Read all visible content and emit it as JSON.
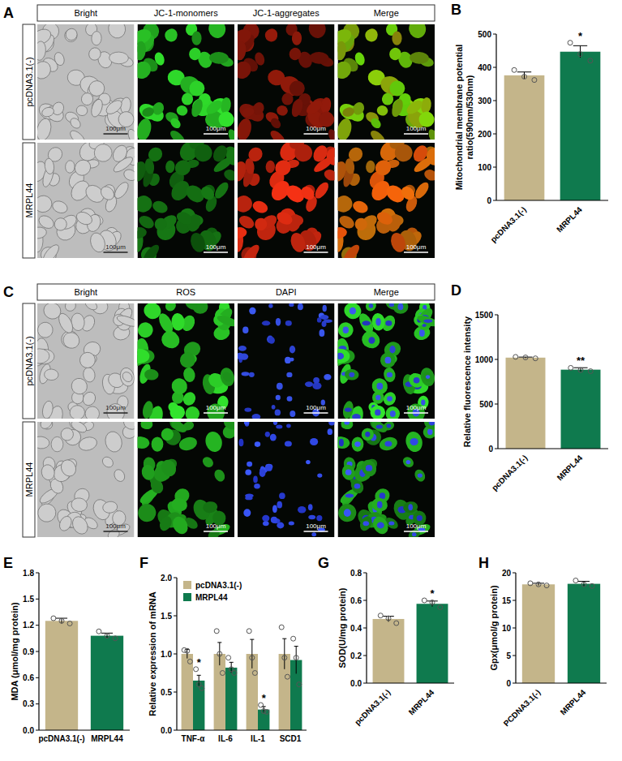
{
  "image_panels": [
    {
      "panel_label": "A",
      "columns": [
        "Bright",
        "JC-1-monomers",
        "JC-1-aggregates",
        "Merge"
      ],
      "rows": [
        "pcDNA3.1(-)",
        "MRPL44"
      ],
      "scale_bar": "100μm"
    },
    {
      "panel_label": "C",
      "columns": [
        "Bright",
        "ROS",
        "DAPI",
        "Merge"
      ],
      "rows": [
        "pcDNA3.1(-)",
        "MRPL44"
      ],
      "scale_bar": "100μm"
    }
  ],
  "chart_data": [
    {
      "panel_label": "B",
      "type": "bar",
      "y_label": "Mitochondrial membrane potential ratio(590nm/530nm)",
      "categories": [
        "pcDNA3.1(-)",
        "MRPL44"
      ],
      "values": [
        376,
        447
      ],
      "errors": [
        10,
        18
      ],
      "points": [
        [
          392,
          372,
          362
        ],
        [
          474,
          440,
          420
        ]
      ],
      "significance": [
        null,
        "*"
      ],
      "colors": [
        "#c4b58a",
        "#0f7a4e"
      ],
      "ylim": [
        0,
        500
      ],
      "yticks": [
        0,
        100,
        200,
        300,
        400,
        500
      ]
    },
    {
      "panel_label": "D",
      "type": "bar",
      "y_label": "Relative fluorescence intensity",
      "categories": [
        "pcDNA3.1(-)",
        "MRPL44"
      ],
      "values": [
        1020,
        885
      ],
      "errors": [
        6,
        22
      ],
      "points": [
        [
          1028,
          1022,
          1012
        ],
        [
          905,
          880,
          868
        ]
      ],
      "significance": [
        null,
        "**"
      ],
      "colors": [
        "#c4b58a",
        "#0f7a4e"
      ],
      "ylim": [
        0,
        1500
      ],
      "yticks": [
        0,
        500,
        1000,
        1500
      ]
    },
    {
      "panel_label": "E",
      "type": "bar",
      "y_label": "MDA (μmol/mg protein)",
      "categories": [
        "pcDNA3.1(-)",
        "MRPL44"
      ],
      "values": [
        1.25,
        1.08
      ],
      "errors": [
        0.03,
        0.03
      ],
      "points": [
        [
          1.28,
          1.25,
          1.22
        ],
        [
          1.13,
          1.08,
          1.05
        ]
      ],
      "significance": [
        null,
        null
      ],
      "colors": [
        "#c4b58a",
        "#0f7a4e"
      ],
      "ylim": [
        0,
        1.8
      ],
      "yticks": [
        {
          "value": 0,
          "label": "0.0"
        },
        0.3,
        0.6,
        0.9,
        1.2,
        1.5,
        1.8
      ]
    },
    {
      "panel_label": "F",
      "type": "bar",
      "y_label": "Relative expression of mRNA",
      "categories": [
        "TNF-α",
        "IL-6",
        "IL-1",
        "SCD1"
      ],
      "legend": "top-left",
      "series": [
        {
          "name": "pcDNA3.1(-)",
          "color": "#c4b58a",
          "values": [
            1.0,
            1.0,
            1.0,
            1.0
          ],
          "errors": [
            0.06,
            0.15,
            0.19,
            0.2
          ],
          "points": [
            [
              1.05,
              1.04,
              0.9
            ],
            [
              1.3,
              1.0,
              0.75
            ],
            [
              1.3,
              0.95,
              0.75
            ],
            [
              1.35,
              0.95,
              0.7
            ]
          ],
          "significance": [
            null,
            null,
            null,
            null
          ]
        },
        {
          "name": "MRPL44",
          "color": "#0f7a4e",
          "values": [
            0.65,
            0.82,
            0.27,
            0.92
          ],
          "errors": [
            0.07,
            0.07,
            0.04,
            0.18
          ],
          "points": [
            [
              0.8,
              0.6,
              0.55
            ],
            [
              0.95,
              0.8,
              0.75
            ],
            [
              0.33,
              0.25,
              0.24
            ],
            [
              1.2,
              0.95,
              0.6
            ]
          ],
          "significance": [
            "*",
            null,
            "*",
            null
          ]
        }
      ],
      "ylim": [
        0,
        2
      ],
      "yticks": [
        {
          "value": 0,
          "label": "0.0"
        },
        0.5,
        {
          "value": 1,
          "label": "1.0"
        },
        1.5,
        {
          "value": 2,
          "label": "2.0"
        }
      ]
    },
    {
      "panel_label": "G",
      "type": "bar",
      "y_label": "SOD(U/mg protein)",
      "categories": [
        "pcDNA3.1(-)",
        "MRPL44"
      ],
      "values": [
        0.465,
        0.575
      ],
      "errors": [
        0.02,
        0.02
      ],
      "points": [
        [
          0.49,
          0.47,
          0.435
        ],
        [
          0.6,
          0.585,
          0.55
        ]
      ],
      "significance": [
        null,
        "*"
      ],
      "colors": [
        "#c4b58a",
        "#0f7a4e"
      ],
      "ylim": [
        0,
        0.8
      ],
      "yticks": [
        {
          "value": 0,
          "label": "0.0"
        },
        0.2,
        0.4,
        0.6,
        0.8
      ]
    },
    {
      "panel_label": "H",
      "type": "bar",
      "y_label": "Gpx(μmol/g protein)",
      "categories": [
        "PCDNA3.1(-)",
        "MRPL44"
      ],
      "values": [
        17.9,
        18.0
      ],
      "errors": [
        0.2,
        0.45
      ],
      "points": [
        [
          18.1,
          17.9,
          17.7
        ],
        [
          18.6,
          17.9,
          17.6
        ]
      ],
      "significance": [
        null,
        null
      ],
      "colors": [
        "#c4b58a",
        "#0f7a4e"
      ],
      "ylim": [
        0,
        20
      ],
      "yticks": [
        0,
        5,
        10,
        15,
        20
      ]
    }
  ]
}
